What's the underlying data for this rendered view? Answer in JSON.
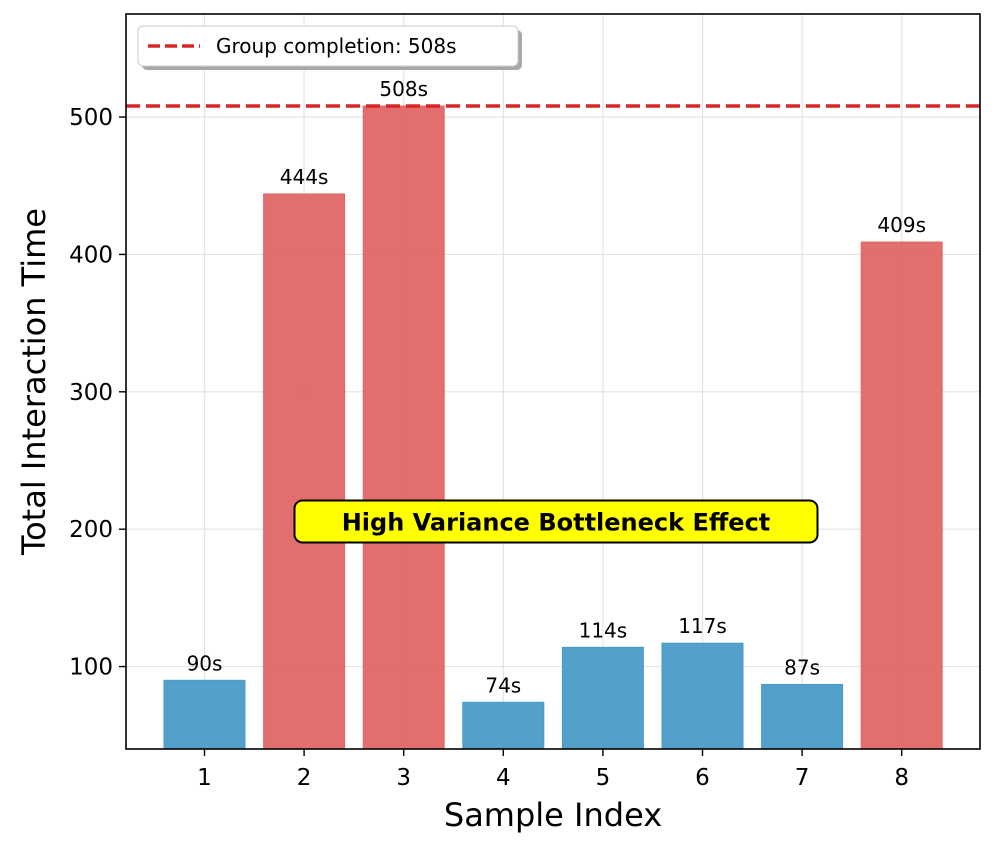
{
  "chart_data": {
    "type": "bar",
    "title": "",
    "xlabel": "Sample Index",
    "ylabel": "Total Interaction Time",
    "categories": [
      "1",
      "2",
      "3",
      "4",
      "5",
      "6",
      "7",
      "8"
    ],
    "values": [
      90,
      444,
      508,
      74,
      114,
      117,
      87,
      409
    ],
    "bar_labels": [
      "90s",
      "444s",
      "508s",
      "74s",
      "114s",
      "117s",
      "87s",
      "409s"
    ],
    "bar_colors": [
      "#4a9bc7",
      "#e06666",
      "#e06666",
      "#4a9bc7",
      "#4a9bc7",
      "#4a9bc7",
      "#4a9bc7",
      "#e06666"
    ],
    "ylim": [
      40,
      575
    ],
    "yticks": [
      100,
      200,
      300,
      400,
      500
    ],
    "ytick_labels": [
      "100",
      "200",
      "300",
      "400",
      "500"
    ],
    "grid": true,
    "reference_line": {
      "value": 508,
      "color": "#d62728",
      "style": "dashed"
    },
    "legend": {
      "position": "top-left",
      "entries": [
        "Group completion: 508s"
      ]
    },
    "annotation": {
      "text": "High Variance Bottleneck Effect",
      "y": 210,
      "background": "#ffff00"
    }
  }
}
